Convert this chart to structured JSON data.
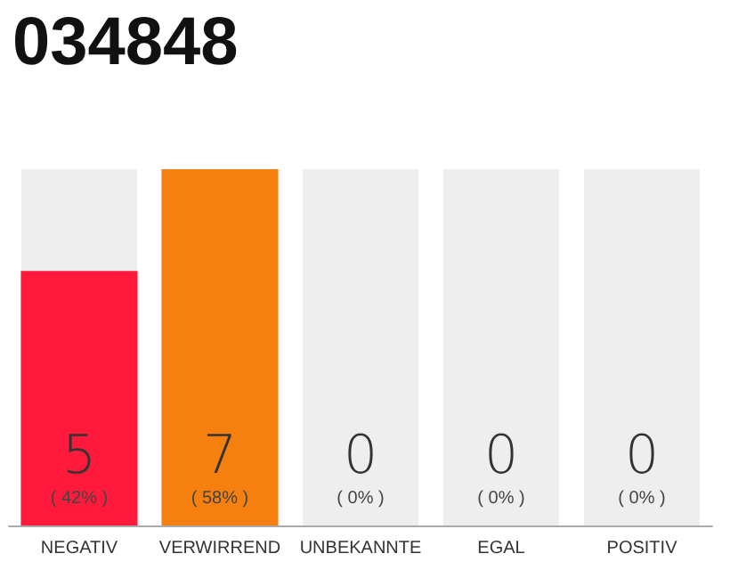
{
  "chart_data": {
    "type": "bar",
    "title": "034848",
    "categories": [
      "NEGATIV",
      "VERWIRREND",
      "UNBEKANNTE",
      "EGAL",
      "POSITIV"
    ],
    "values": [
      5,
      7,
      0,
      0,
      0
    ],
    "colors": [
      "#ff1a3c",
      "#f57f0f",
      null,
      null,
      null
    ],
    "value_labels": [
      "5\n( 42% )",
      "7\n( 58% )",
      "0\n( 0% )",
      "0\n( 0% )",
      "0\n( 0% )"
    ]
  }
}
